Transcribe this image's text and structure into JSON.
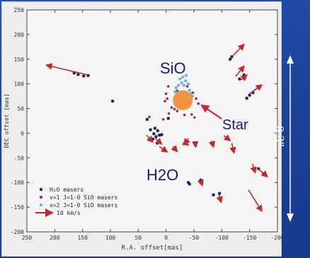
{
  "chart_data": {
    "type": "scatter",
    "xlabel": "R.A. offset[mas]",
    "ylabel": "DEC offset [mas]",
    "xlim": [
      250,
      -200
    ],
    "ylim": [
      -200,
      250
    ],
    "x_ticks": [
      "250",
      "200",
      "150",
      "100",
      "50",
      "0",
      "-50",
      "-100",
      "-150",
      "-200"
    ],
    "y_ticks": [
      "250",
      "200",
      "150",
      "100",
      "50",
      "0",
      "-50",
      "-100",
      "-150",
      "-200"
    ],
    "series": [
      {
        "name": "H₂O masers",
        "color": "#1a2455",
        "points": [
          [
            165,
            122
          ],
          [
            158,
            119
          ],
          [
            148,
            116
          ],
          [
            140,
            117
          ],
          [
            20,
            10
          ],
          [
            15,
            5
          ],
          [
            12,
            -4
          ],
          [
            18,
            -7
          ],
          [
            24,
            -12
          ],
          [
            8,
            -3
          ],
          [
            28,
            7
          ],
          [
            22,
            -1
          ],
          [
            16,
            -20
          ],
          [
            -4,
            30
          ],
          [
            -40,
            -100
          ],
          [
            -42,
            -103
          ],
          [
            -62,
            -95
          ],
          [
            -61,
            -98
          ],
          [
            -85,
            -125
          ],
          [
            -96,
            -122
          ],
          [
            -115,
            150
          ],
          [
            -118,
            155
          ],
          [
            -132,
            110
          ],
          [
            -140,
            118
          ],
          [
            -150,
            77
          ],
          [
            -156,
            82
          ],
          [
            -145,
            71
          ],
          [
            -166,
            -72
          ],
          [
            -175,
            -82
          ],
          [
            96,
            65
          ],
          [
            34,
            28
          ]
        ]
      },
      {
        "name": "v=1 J=1-0 SiO masers",
        "color": "#9c2a6a",
        "points": [
          [
            -4,
            95
          ],
          [
            -10,
            52
          ],
          [
            -15,
            49
          ],
          [
            -20,
            45
          ],
          [
            0,
            80
          ],
          [
            -5,
            40
          ],
          [
            -48,
            82
          ],
          [
            -54,
            70
          ],
          [
            -58,
            60
          ],
          [
            -46,
            38
          ],
          [
            -51,
            32
          ],
          [
            -33,
            37
          ],
          [
            -20,
            86
          ],
          [
            -38,
            95
          ],
          [
            2,
            65
          ],
          [
            -2,
            70
          ],
          [
            -42,
            62
          ],
          [
            30,
            33
          ],
          [
            5,
            28
          ]
        ]
      },
      {
        "name": "v=2 J=1-0 SiO masers",
        "color": "#7ab0d8",
        "points": [
          [
            -30,
            114
          ],
          [
            -25,
            110
          ],
          [
            -35,
            106
          ],
          [
            -40,
            100
          ],
          [
            -28,
            102
          ],
          [
            -22,
            97
          ],
          [
            -42,
            87
          ],
          [
            -44,
            80
          ],
          [
            -18,
            92
          ],
          [
            -36,
            117
          ],
          [
            -32,
            97
          ],
          [
            -47,
            75
          ],
          [
            -16,
            84
          ]
        ]
      }
    ],
    "arrows": [
      {
        "from": [
          140,
          118
        ],
        "to": [
          215,
          138
        ]
      },
      {
        "from": [
          -118,
          155
        ],
        "to": [
          -140,
          180
        ]
      },
      {
        "from": [
          -125,
          115
        ],
        "to": [
          -140,
          136
        ]
      },
      {
        "from": [
          -135,
          108
        ],
        "to": [
          -145,
          118
        ]
      },
      {
        "from": [
          -150,
          80
        ],
        "to": [
          -172,
          98
        ]
      },
      {
        "from": [
          -40,
          -10
        ],
        "to": [
          -33,
          -23
        ]
      },
      {
        "from": [
          -52,
          -16
        ],
        "to": [
          -53,
          -28
        ]
      },
      {
        "from": [
          -82,
          -15
        ],
        "to": [
          -85,
          -28
        ]
      },
      {
        "from": [
          -104,
          -5
        ],
        "to": [
          -115,
          -15
        ]
      },
      {
        "from": [
          -118,
          -20
        ],
        "to": [
          -122,
          -40
        ]
      },
      {
        "from": [
          -155,
          -62
        ],
        "to": [
          -160,
          -80
        ]
      },
      {
        "from": [
          -165,
          -72
        ],
        "to": [
          -182,
          -88
        ]
      },
      {
        "from": [
          -148,
          -115
        ],
        "to": [
          -172,
          -158
        ]
      },
      {
        "from": [
          -95,
          -125
        ],
        "to": [
          -99,
          -140
        ]
      },
      {
        "from": [
          -62,
          -96
        ],
        "to": [
          -65,
          -106
        ]
      },
      {
        "from": [
          35,
          -4
        ],
        "to": [
          24,
          -18
        ]
      },
      {
        "from": [
          20,
          -10
        ],
        "to": [
          8,
          -22
        ]
      },
      {
        "from": [
          12,
          -27
        ],
        "to": [
          -2,
          -38
        ]
      },
      {
        "from": [
          -12,
          -27
        ],
        "to": [
          -20,
          -37
        ]
      },
      {
        "from": [
          -32,
          -18
        ],
        "to": [
          -40,
          -24
        ]
      }
    ],
    "legend": {
      "placement": "bottom-left",
      "entries": [
        "H₂O masers",
        "v=1 J=1-0 SiO masers",
        "v=2 J=1-0 SiO masers",
        "10 km/s"
      ]
    },
    "star": {
      "x": -30,
      "y": 67,
      "color": "#f08c3a"
    },
    "grid": false
  },
  "annotations": {
    "sio": "SiO",
    "star": "Star",
    "h2o": "H2O",
    "scale": "0.3″"
  },
  "colors": {
    "background": "#1e45a0",
    "arrow": "#c8262b",
    "star": "#f08c3a",
    "scale_arrow": "#ffffff",
    "annotation_text": "#1a1a7a"
  }
}
